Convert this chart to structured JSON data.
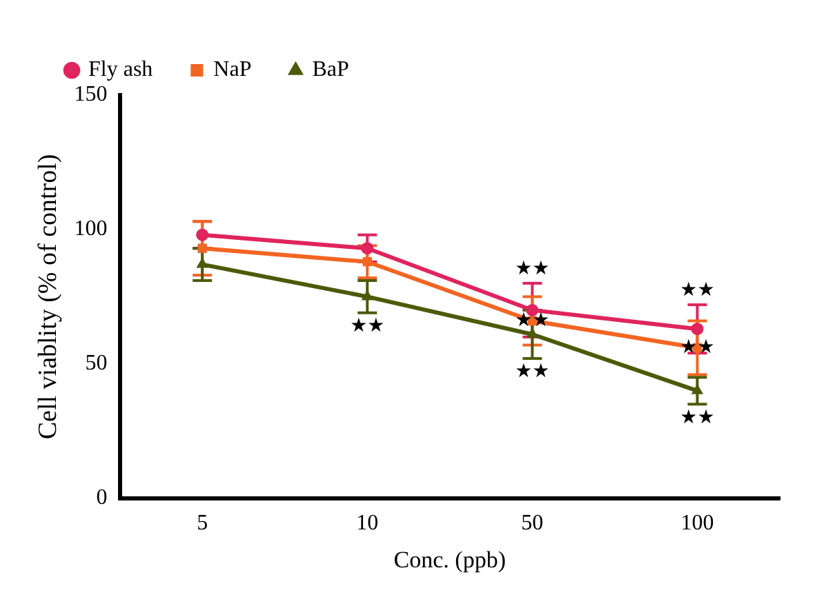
{
  "chart_data": {
    "type": "line",
    "xlabel": "Conc. (ppb)",
    "ylabel": "Cell viablity (% of control)",
    "categories": [
      "5",
      "10",
      "50",
      "100"
    ],
    "series": [
      {
        "name": "Fly ash",
        "color": "#e0245e",
        "marker": "circle",
        "values": [
          98,
          93,
          70,
          63
        ],
        "errors": [
          5,
          5,
          10,
          9
        ]
      },
      {
        "name": "NaP",
        "color": "#f26522",
        "marker": "square",
        "values": [
          93,
          88,
          66,
          56
        ],
        "errors": [
          10,
          6,
          9,
          10
        ]
      },
      {
        "name": "BaP",
        "color": "#4d5a0a",
        "marker": "triangle",
        "values": [
          87,
          75,
          61,
          40
        ],
        "errors": [
          6,
          6,
          9,
          5
        ]
      }
    ],
    "ylim": [
      0,
      150
    ],
    "yticks": [
      0,
      50,
      100,
      150
    ],
    "grid": false,
    "legend": "top left",
    "annotations": [
      {
        "text": "★★",
        "x": "10",
        "y": 69
      },
      {
        "text": "★★",
        "x": "50",
        "y": 80
      },
      {
        "text": "★★",
        "x": "50",
        "y": 66
      },
      {
        "text": "★★",
        "x": "50",
        "y": 52
      },
      {
        "text": "★★",
        "x": "100",
        "y": 72
      },
      {
        "text": "★★",
        "x": "100",
        "y": 56
      },
      {
        "text": "★★",
        "x": "100",
        "y": 35
      }
    ]
  }
}
